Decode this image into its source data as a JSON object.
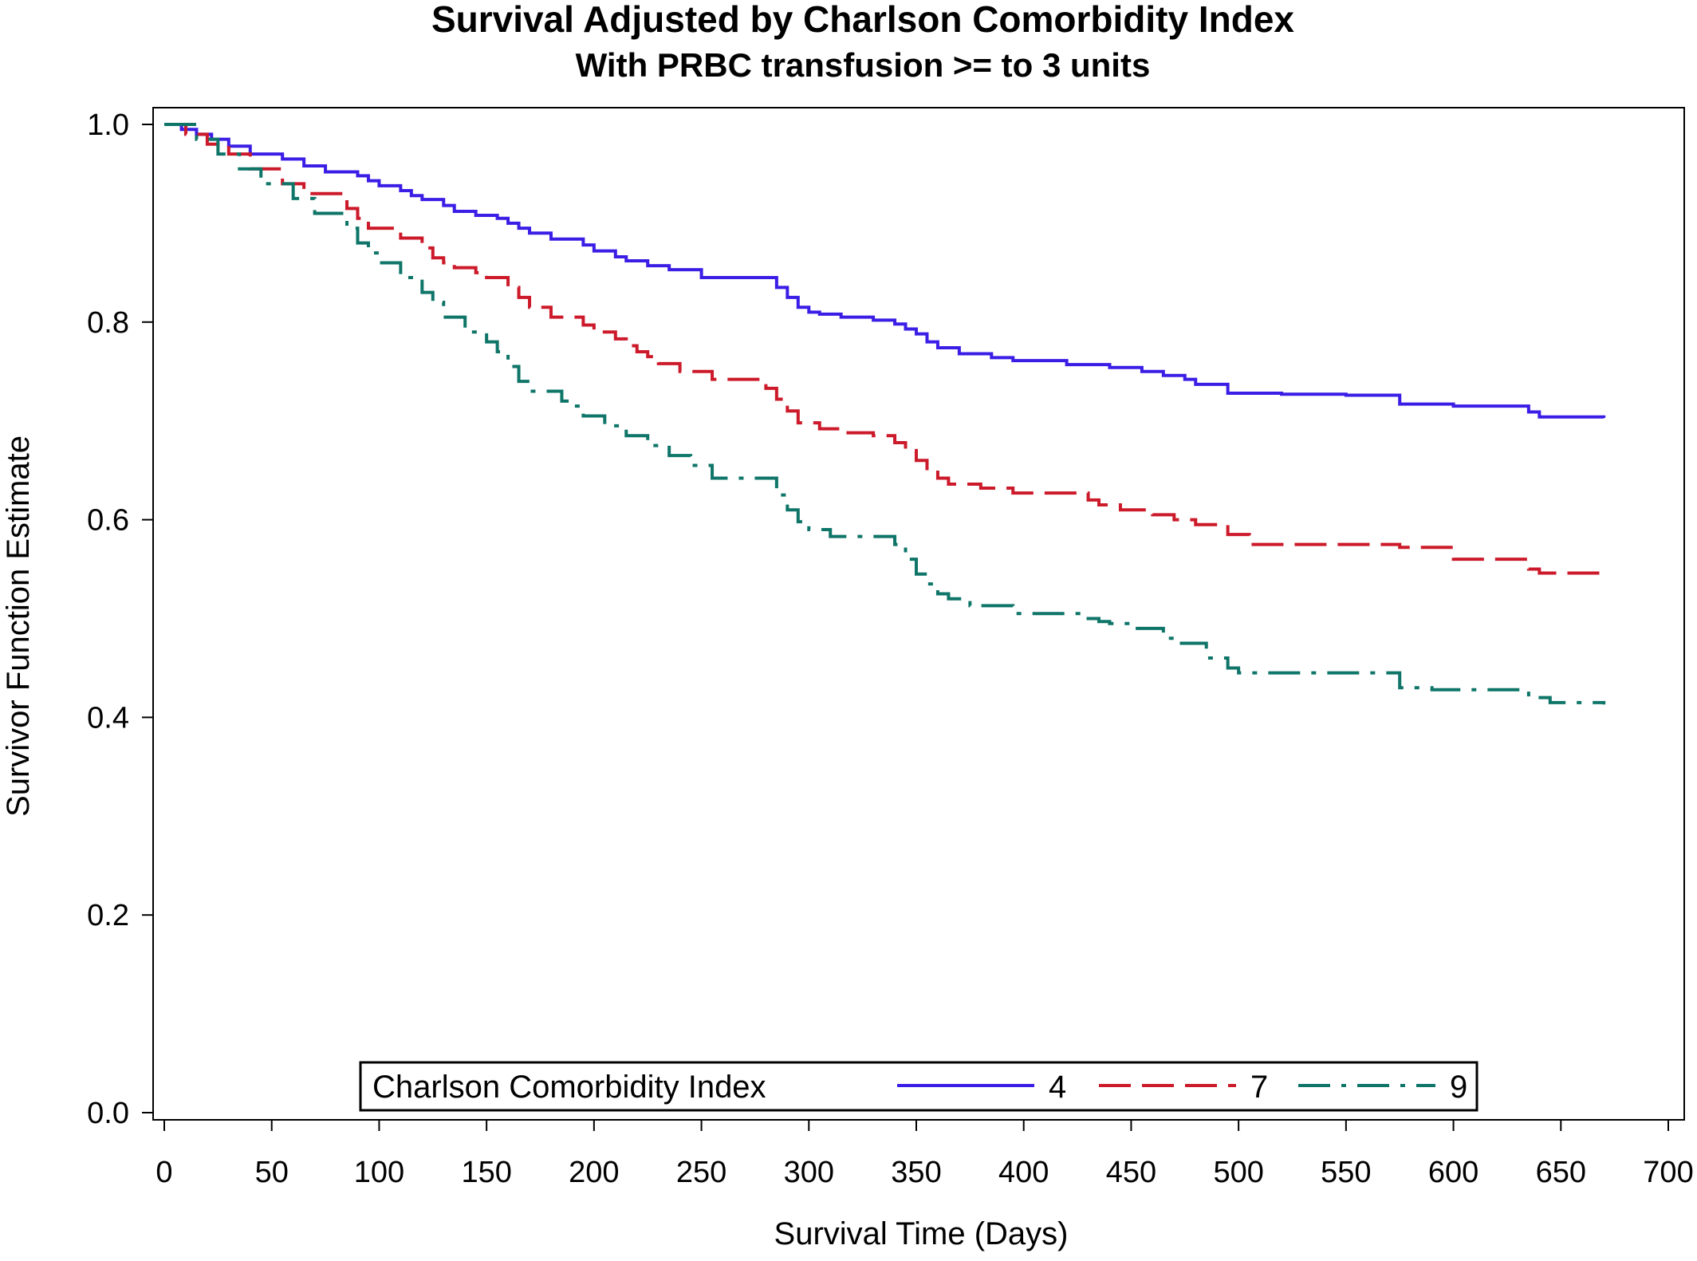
{
  "chart_data": {
    "type": "line",
    "title": "Survival Adjusted by Charlson Comorbidity Index",
    "subtitle": "With PRBC transfusion >= to 3 units",
    "xlabel": "Survival Time (Days)",
    "ylabel": "Survivor Function Estimate",
    "xlim": [
      0,
      700
    ],
    "ylim": [
      0,
      1.0
    ],
    "x_ticks": [
      0,
      50,
      100,
      150,
      200,
      250,
      300,
      350,
      400,
      450,
      500,
      550,
      600,
      650,
      700
    ],
    "x_tick_labels": [
      "0",
      "50",
      "100",
      "150",
      "200",
      "250",
      "300",
      "350",
      "400",
      "450",
      "500",
      "550",
      "600",
      "650",
      "700"
    ],
    "y_ticks": [
      0.0,
      0.2,
      0.4,
      0.6,
      0.8,
      1.0
    ],
    "y_tick_labels": [
      "0.0",
      "0.2",
      "0.4",
      "0.6",
      "0.8",
      "1.0"
    ],
    "grid": false,
    "legend": {
      "position": "bottom-inside",
      "title": "Charlson Comorbidity Index",
      "entries": [
        "4",
        "7",
        "9"
      ]
    },
    "series": [
      {
        "name": "4",
        "color": "#3a1ee6",
        "dash": "solid",
        "x": [
          0,
          8,
          15,
          22,
          30,
          40,
          55,
          65,
          75,
          90,
          95,
          100,
          110,
          115,
          120,
          130,
          135,
          145,
          155,
          160,
          165,
          170,
          180,
          195,
          200,
          210,
          215,
          225,
          235,
          250,
          285,
          290,
          295,
          300,
          305,
          315,
          330,
          340,
          345,
          350,
          355,
          360,
          370,
          385,
          395,
          420,
          440,
          455,
          465,
          475,
          480,
          495,
          520,
          550,
          575,
          600,
          635,
          640,
          670
        ],
        "y": [
          1.0,
          0.995,
          0.99,
          0.985,
          0.978,
          0.97,
          0.965,
          0.958,
          0.952,
          0.948,
          0.943,
          0.938,
          0.933,
          0.928,
          0.924,
          0.918,
          0.912,
          0.908,
          0.905,
          0.9,
          0.895,
          0.89,
          0.884,
          0.878,
          0.872,
          0.866,
          0.862,
          0.857,
          0.853,
          0.845,
          0.835,
          0.825,
          0.815,
          0.81,
          0.808,
          0.805,
          0.802,
          0.798,
          0.793,
          0.788,
          0.78,
          0.774,
          0.768,
          0.764,
          0.761,
          0.757,
          0.754,
          0.75,
          0.746,
          0.742,
          0.737,
          0.728,
          0.727,
          0.726,
          0.717,
          0.715,
          0.709,
          0.704,
          0.703
        ]
      },
      {
        "name": "7",
        "color": "#cc1a2a",
        "dash": "dashed",
        "x": [
          0,
          10,
          20,
          30,
          40,
          55,
          65,
          85,
          90,
          95,
          110,
          120,
          125,
          130,
          135,
          145,
          150,
          160,
          165,
          170,
          180,
          195,
          200,
          210,
          215,
          220,
          225,
          230,
          240,
          255,
          280,
          285,
          290,
          295,
          305,
          315,
          330,
          340,
          345,
          350,
          355,
          360,
          365,
          380,
          395,
          430,
          435,
          445,
          460,
          470,
          480,
          495,
          505,
          575,
          600,
          635,
          640,
          670
        ],
        "y": [
          1.0,
          0.99,
          0.98,
          0.97,
          0.955,
          0.94,
          0.93,
          0.915,
          0.905,
          0.895,
          0.885,
          0.875,
          0.865,
          0.86,
          0.855,
          0.85,
          0.845,
          0.835,
          0.825,
          0.815,
          0.805,
          0.797,
          0.79,
          0.783,
          0.776,
          0.77,
          0.765,
          0.758,
          0.75,
          0.742,
          0.733,
          0.722,
          0.71,
          0.698,
          0.692,
          0.688,
          0.685,
          0.678,
          0.67,
          0.66,
          0.65,
          0.642,
          0.636,
          0.632,
          0.627,
          0.62,
          0.615,
          0.61,
          0.605,
          0.6,
          0.595,
          0.585,
          0.575,
          0.572,
          0.56,
          0.55,
          0.546,
          0.543
        ]
      },
      {
        "name": "9",
        "color": "#0e7568",
        "dash": "dash-dot",
        "x": [
          0,
          15,
          25,
          35,
          45,
          60,
          70,
          85,
          90,
          95,
          100,
          110,
          120,
          125,
          130,
          140,
          150,
          155,
          160,
          165,
          170,
          185,
          190,
          195,
          205,
          215,
          225,
          235,
          245,
          255,
          285,
          290,
          295,
          300,
          310,
          340,
          345,
          350,
          355,
          360,
          365,
          375,
          395,
          430,
          435,
          440,
          450,
          465,
          470,
          485,
          495,
          500,
          575,
          590,
          635,
          645,
          670
        ],
        "y": [
          1.0,
          0.985,
          0.97,
          0.955,
          0.94,
          0.925,
          0.91,
          0.895,
          0.88,
          0.87,
          0.86,
          0.845,
          0.83,
          0.82,
          0.805,
          0.79,
          0.78,
          0.77,
          0.755,
          0.74,
          0.73,
          0.72,
          0.715,
          0.705,
          0.695,
          0.685,
          0.675,
          0.665,
          0.655,
          0.642,
          0.625,
          0.61,
          0.598,
          0.59,
          0.583,
          0.575,
          0.56,
          0.545,
          0.535,
          0.525,
          0.52,
          0.513,
          0.505,
          0.5,
          0.497,
          0.495,
          0.49,
          0.48,
          0.475,
          0.46,
          0.45,
          0.445,
          0.43,
          0.428,
          0.42,
          0.415,
          0.413
        ]
      }
    ]
  }
}
